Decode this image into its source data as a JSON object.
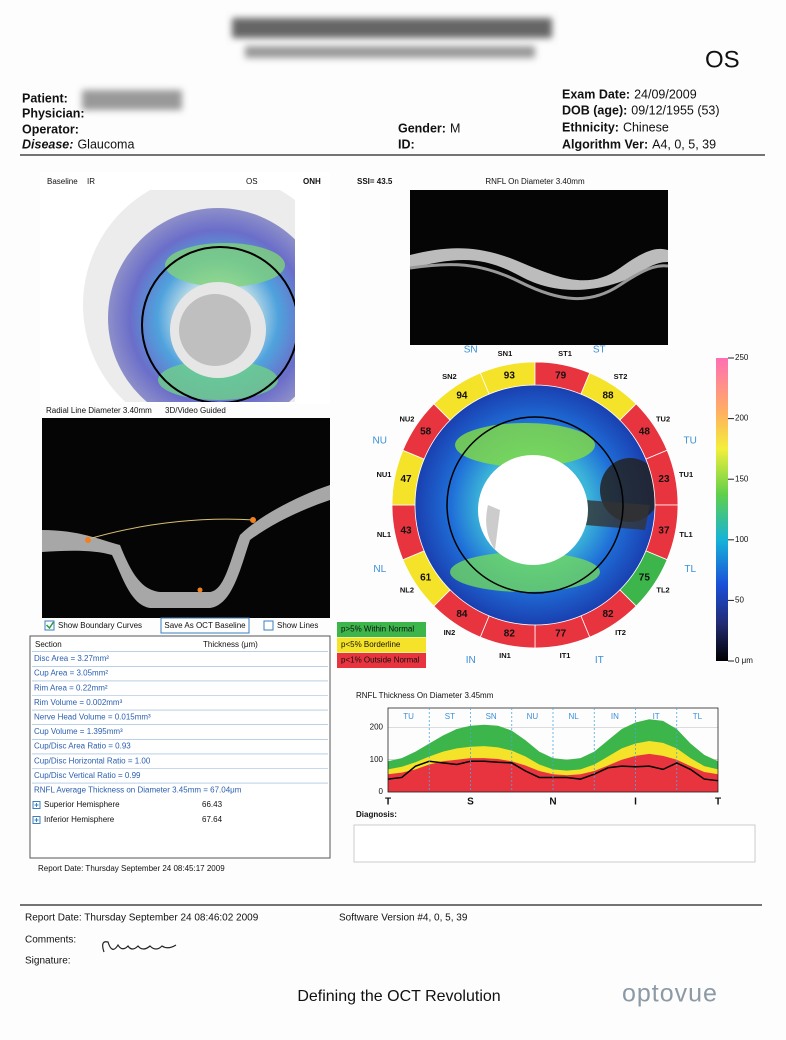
{
  "header": {
    "eye": "OS",
    "left": [
      {
        "label": "Patient:",
        "value": ""
      },
      {
        "label": "Physician:",
        "value": ""
      },
      {
        "label": "Operator:",
        "value": ""
      },
      {
        "label": "Disease:",
        "value": "Glaucoma"
      }
    ],
    "middle": [
      {
        "label": "Gender:",
        "value": "M"
      },
      {
        "label": "ID:",
        "value": ""
      }
    ],
    "right": [
      {
        "label": "Exam Date:",
        "value": "24/09/2009"
      },
      {
        "label": "DOB (age):",
        "value": "09/12/1955 (53)"
      },
      {
        "label": "Ethnicity:",
        "value": "Chinese"
      },
      {
        "label": "Algorithm Ver:",
        "value": "A4, 0, 5, 39"
      }
    ]
  },
  "images": {
    "baseline": "Baseline",
    "ir": "IR",
    "eye": "OS",
    "onh": "ONH",
    "ssi": "SSI= 43.5",
    "rnfl_scan": "RNFL On Diameter 3.40mm",
    "radial": "Radial Line Diameter 3.40mm",
    "guided": "3D/Video Guided",
    "show_boundary": "Show Boundary Curves",
    "save_baseline": "Save As OCT Baseline",
    "show_lines": "Show Lines"
  },
  "legend": [
    {
      "label": "p>5% Within Normal",
      "color": "#3cb54a"
    },
    {
      "label": "p<5% Borderline",
      "color": "#f5e32a"
    },
    {
      "label": "p<1% Outside Normal",
      "color": "#e8343f"
    }
  ],
  "sectors": [
    {
      "label": "SN1",
      "value": 93,
      "color": "#f5e32a"
    },
    {
      "label": "ST1",
      "value": 79,
      "color": "#e8343f"
    },
    {
      "label": "ST2",
      "value": 88,
      "color": "#f5e32a"
    },
    {
      "label": "TU2",
      "value": 48,
      "color": "#e8343f"
    },
    {
      "label": "TU1",
      "value": 23,
      "color": "#e8343f"
    },
    {
      "label": "TL1",
      "value": 37,
      "color": "#e8343f"
    },
    {
      "label": "TL2",
      "value": 75,
      "color": "#3cb54a"
    },
    {
      "label": "IT2",
      "value": 82,
      "color": "#e8343f"
    },
    {
      "label": "IT1",
      "value": 77,
      "color": "#e8343f"
    },
    {
      "label": "IN1",
      "value": 82,
      "color": "#e8343f"
    },
    {
      "label": "IN2",
      "value": 84,
      "color": "#e8343f"
    },
    {
      "label": "NL2",
      "value": 61,
      "color": "#f5e32a"
    },
    {
      "label": "NL1",
      "value": 43,
      "color": "#e8343f"
    },
    {
      "label": "NU1",
      "value": 47,
      "color": "#f5e32a"
    },
    {
      "label": "NU2",
      "value": 58,
      "color": "#e8343f"
    },
    {
      "label": "SN2",
      "value": 94,
      "color": "#f5e32a"
    }
  ],
  "quadrants": [
    "SN",
    "ST",
    "TU",
    "TL",
    "IT",
    "IN",
    "NL",
    "NU"
  ],
  "colorbar": {
    "lim": [
      0,
      250
    ],
    "ticks": [
      250,
      200,
      150,
      100,
      50,
      {
        "value": 0,
        "label": "0 μm"
      }
    ]
  },
  "table": {
    "header": [
      "Section",
      "Thickness (μm)"
    ],
    "rows": [
      "Disc Area = 3.27mm²",
      "Cup Area = 3.05mm²",
      "Rim Area = 0.22mm²",
      "Rim Volume = 0.002mm³",
      "Nerve Head Volume = 0.015mm³",
      "Cup Volume = 1.395mm³",
      "Cup/Disc Area Ratio = 0.93",
      "Cup/Disc Horizontal Ratio = 1.00",
      "Cup/Disc Vertical Ratio = 0.99",
      "RNFL Average Thickness on Diameter 3.45mm = 67.04μm"
    ],
    "hemispheres": [
      {
        "name": "Superior Hemisphere",
        "value": 66.43
      },
      {
        "name": "Inferior Hemisphere",
        "value": 67.64
      }
    ]
  },
  "report_date_small": "Report Date: Thursday September 24 08:45:17 2009",
  "graph": {
    "title": "RNFL Thickness On Diameter 3.45mm",
    "ylim": [
      0,
      260
    ],
    "yticks": [
      0,
      100,
      200
    ],
    "sectors": [
      "TU",
      "ST",
      "SN",
      "NU",
      "NL",
      "IN",
      "IT",
      "TL"
    ],
    "xlabels": [
      "T",
      "S",
      "N",
      "I",
      "T"
    ],
    "within_normal_upper": [
      95,
      105,
      125,
      150,
      175,
      195,
      205,
      208,
      205,
      190,
      160,
      125,
      105,
      100,
      105,
      125,
      160,
      195,
      215,
      225,
      220,
      195,
      150,
      115,
      95
    ],
    "borderline_upper": [
      70,
      78,
      92,
      110,
      125,
      135,
      140,
      142,
      138,
      128,
      110,
      85,
      70,
      66,
      70,
      85,
      110,
      135,
      150,
      158,
      152,
      135,
      105,
      80,
      70
    ],
    "outside_normal_upper": [
      55,
      60,
      70,
      85,
      95,
      100,
      105,
      105,
      102,
      95,
      82,
      65,
      55,
      52,
      55,
      65,
      82,
      100,
      112,
      118,
      112,
      100,
      80,
      62,
      55
    ],
    "thickness": [
      40,
      45,
      80,
      95,
      90,
      85,
      95,
      95,
      92,
      90,
      65,
      45,
      45,
      45,
      40,
      55,
      75,
      80,
      78,
      80,
      70,
      90,
      70,
      40,
      35
    ],
    "diagnosis_label": "Diagnosis:"
  },
  "footer": {
    "report_date": "Report Date: Thursday September 24 08:46:02 2009",
    "software": "Software Version #4, 0, 5, 39",
    "comments": "Comments:",
    "signature": "Signature:",
    "tagline": "Defining the OCT Revolution",
    "logo": "optovue"
  }
}
